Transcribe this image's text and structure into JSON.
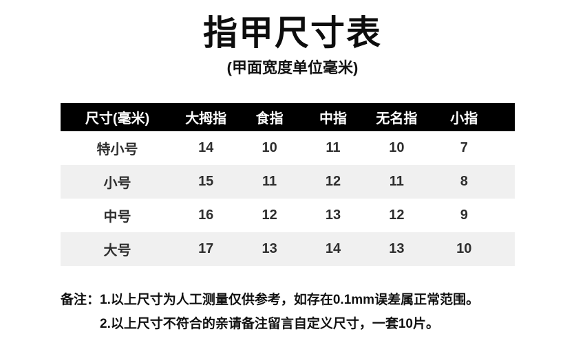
{
  "page": {
    "title": "指甲尺寸表",
    "subtitle": "(甲面宽度单位毫米)"
  },
  "chart_data": {
    "type": "table",
    "title": "指甲尺寸表",
    "subtitle": "(甲面宽度单位毫米)",
    "unit": "毫米",
    "columns": [
      "尺寸(毫米)",
      "大拇指",
      "食指",
      "中指",
      "无名指",
      "小指"
    ],
    "rows": [
      [
        "特小号",
        "14",
        "10",
        "11",
        "10",
        "7"
      ],
      [
        "小号",
        "15",
        "11",
        "12",
        "11",
        "8"
      ],
      [
        "中号",
        "16",
        "12",
        "13",
        "12",
        "9"
      ],
      [
        "大号",
        "17",
        "13",
        "14",
        "13",
        "10"
      ]
    ],
    "layout": {
      "header_bg": "#000000",
      "header_text_color": "#ffffff",
      "stripe_colors": [
        "#ffffff",
        "#f0f0f0"
      ],
      "grid": false
    }
  },
  "notes": {
    "label": "备注：",
    "items": [
      "1.以上尺寸为人工测量仅供参考，如存在0.1mm误差属正常范围。",
      "2.以上尺寸不符合的亲请备注留言自定义尺寸，一套10片。"
    ]
  },
  "colors": {
    "background": "#ffffff",
    "title_text": "#0d0d0d",
    "body_text": "#2e2e2e",
    "header_bg": "#000000",
    "header_text": "#ffffff",
    "row_stripe": "#f0f0f0"
  }
}
